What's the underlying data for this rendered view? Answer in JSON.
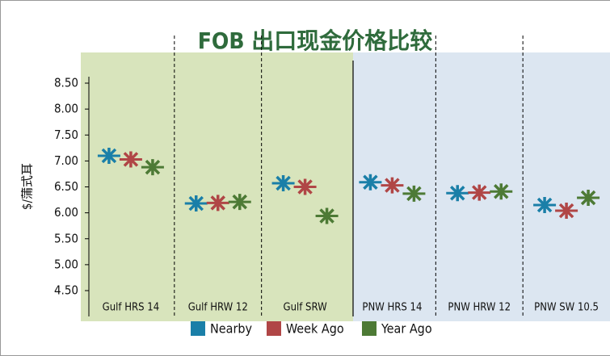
{
  "chart_data": {
    "type": "scatter",
    "title": "FOB 出口现金价格比较",
    "y_label": "$/蒲式耳",
    "categories": [
      "Gulf HRS 14",
      "Gulf HRW 12",
      "Gulf SRW",
      "PNW HRS 14",
      "PNW HRW 12",
      "PNW SW 10.5"
    ],
    "series": [
      {
        "name": "Nearby",
        "color": "#1a7fa8",
        "values": [
          7.1,
          6.18,
          6.57,
          6.59,
          6.38,
          6.15
        ]
      },
      {
        "name": "Week Ago",
        "color": "#b04646",
        "values": [
          7.03,
          6.19,
          6.5,
          6.53,
          6.39,
          6.04
        ]
      },
      {
        "name": "Year Ago",
        "color": "#4d7a35",
        "values": [
          6.88,
          6.21,
          5.94,
          6.37,
          6.41,
          6.29
        ]
      }
    ],
    "ylim": [
      4.5,
      8.5
    ],
    "yticks": [
      {
        "value": 4.5,
        "label": "4.50"
      },
      {
        "value": 5,
        "label": "5.00"
      },
      {
        "value": 5.5,
        "label": "5.50"
      },
      {
        "value": 6,
        "label": "6.00"
      },
      {
        "value": 6.5,
        "label": "6.50"
      },
      {
        "value": 7,
        "label": "7.00"
      },
      {
        "value": 7.5,
        "label": "7.50"
      },
      {
        "value": 8,
        "label": "8.00"
      },
      {
        "value": 8.5,
        "label": "8.50"
      }
    ],
    "legend": "bottom"
  }
}
